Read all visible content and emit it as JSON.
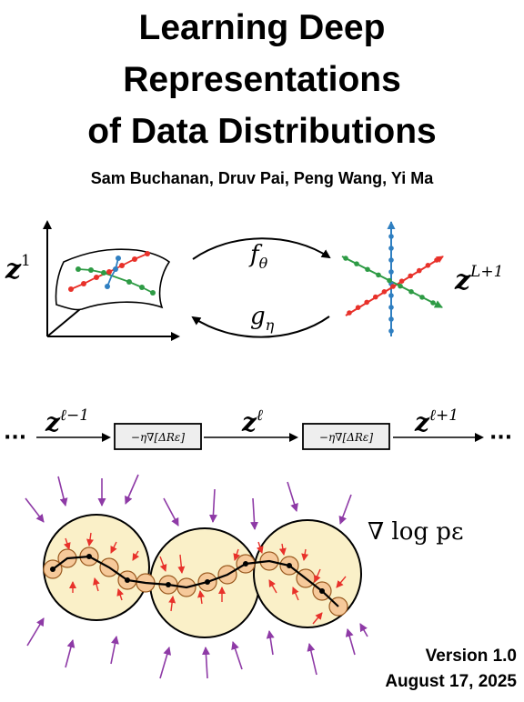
{
  "title": {
    "line1": "Learning Deep",
    "line2": "Representations",
    "line3": "of Data Distributions"
  },
  "authors": "Sam Buchanan, Druv Pai, Peng Wang, Yi Ma",
  "figure_top": {
    "z_input_base": "z",
    "z_input_sup": "1",
    "z_output_base": "z",
    "z_output_sup": "L+1",
    "encoder_label_base": "f",
    "encoder_label_sub": "θ",
    "decoder_label_base": "g",
    "decoder_label_sub": "η"
  },
  "chain": {
    "left_ellipsis": "···",
    "right_ellipsis": "···",
    "z_prev_base": "z",
    "z_prev_sup": "ℓ−1",
    "z_mid_base": "z",
    "z_mid_sup": "ℓ",
    "z_next_base": "z",
    "z_next_sup": "ℓ+1",
    "op_box_1": "−η∇[ΔRε]",
    "op_box_2": "−η∇[ΔRε]"
  },
  "score_label": "∇ log pε",
  "version": "Version 1.0",
  "date": "August 17, 2025",
  "colors": {
    "red": "#e8312a",
    "green": "#2e9b45",
    "blue": "#2f7fc1",
    "purple": "#8e3aa6",
    "ball_fill": "#faf0c8",
    "bead_fill": "#f6c99a"
  }
}
